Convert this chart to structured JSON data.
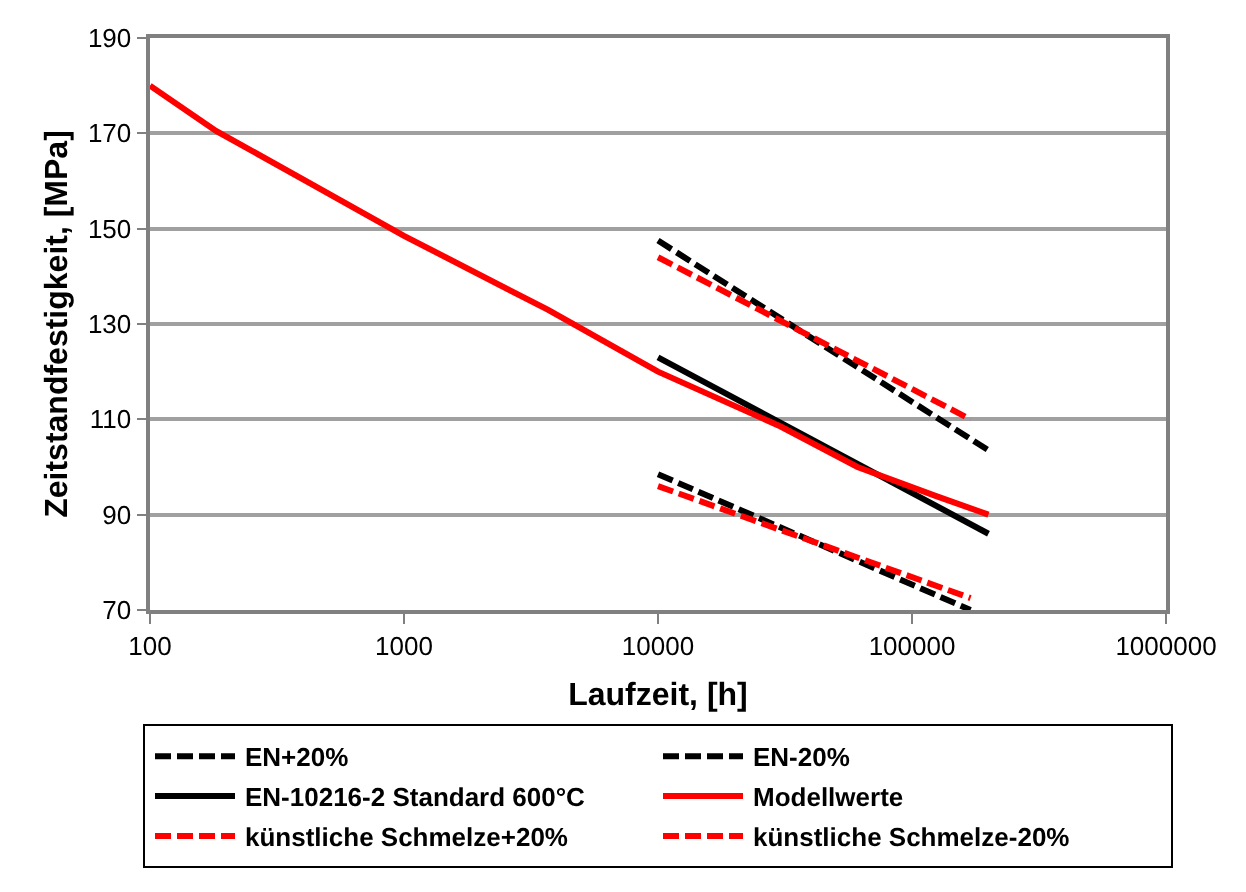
{
  "chart_data": {
    "type": "line",
    "xlabel": "Laufzeit, [h]",
    "ylabel": "Zeitstandfestigkeit, [MPa]",
    "log": "x",
    "xlim": [
      100,
      1000000
    ],
    "xticks": [
      100,
      1000,
      10000,
      100000,
      1000000
    ],
    "ylim": [
      70,
      190
    ],
    "yticks": [
      70,
      90,
      110,
      130,
      150,
      170,
      190
    ],
    "grid": "y",
    "legend": "bottom",
    "marker": "none",
    "series": [
      {
        "name": "EN+20%",
        "color": "#000000",
        "line_style": "dashed",
        "x": [
          10000,
          200000
        ],
        "values": [
          147.5,
          103.5
        ]
      },
      {
        "name": "EN-20%",
        "color": "#000000",
        "line_style": "dashed",
        "x": [
          10000,
          170000
        ],
        "values": [
          98.5,
          70
        ]
      },
      {
        "name": "EN-10216-2 Standard 600°C",
        "color": "#000000",
        "line_style": "solid",
        "x": [
          10000,
          200000
        ],
        "values": [
          123,
          86
        ]
      },
      {
        "name": "Modellwerte",
        "color": "#ff0000",
        "line_style": "solid",
        "x": [
          100,
          182,
          445,
          1000,
          3680,
          10000,
          30400,
          61000,
          123000,
          200000
        ],
        "values": [
          180,
          170.5,
          159,
          148.5,
          133,
          120,
          108.5,
          100,
          94,
          90
        ]
      },
      {
        "name": "künstliche Schmelze+20%",
        "color": "#ff0000",
        "line_style": "dashed",
        "x": [
          10000,
          170000
        ],
        "values": [
          144,
          110
        ]
      },
      {
        "name": "künstliche Schmelze-20%",
        "color": "#ff0000",
        "line_style": "dashed",
        "x": [
          10000,
          170000
        ],
        "values": [
          96,
          72.5
        ]
      }
    ]
  }
}
